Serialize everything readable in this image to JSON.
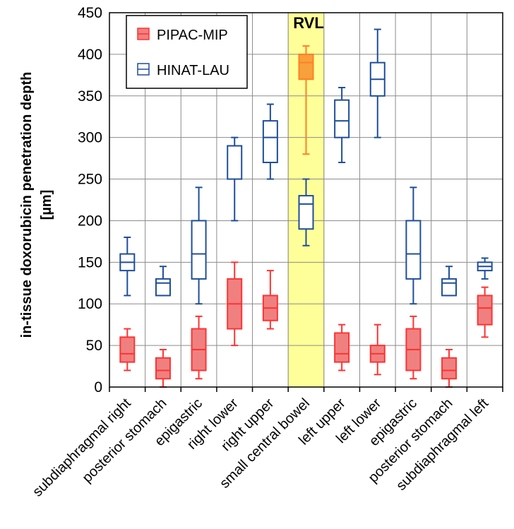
{
  "chart_data": {
    "type": "box",
    "ylabel_line1": "in-tissue doxorubicin penetration depth",
    "ylabel_line2": "[µm]",
    "ylim": [
      0,
      450
    ],
    "yticks": [
      0,
      50,
      100,
      150,
      200,
      250,
      300,
      350,
      400,
      450
    ],
    "categories": [
      "subdiaphragmal right",
      "posterior stomach",
      "epigastric",
      "right lower",
      "right upper",
      "small central bowel",
      "left upper",
      "left lower",
      "epigastric",
      "posterior stomach",
      "subdiaphragmal left"
    ],
    "highlight": {
      "label": "RVL",
      "category_index": 5,
      "color": "#ffff99"
    },
    "series": [
      {
        "name": "PIPAC-MIP",
        "color": "#ff3333",
        "fill": "#f08080",
        "boxes": [
          {
            "min": 20,
            "q1": 30,
            "median": 40,
            "q3": 60,
            "max": 70
          },
          {
            "min": 0,
            "q1": 10,
            "median": 20,
            "q3": 35,
            "max": 45
          },
          {
            "min": 10,
            "q1": 20,
            "median": 45,
            "q3": 70,
            "max": 85
          },
          {
            "min": 50,
            "q1": 70,
            "median": 100,
            "q3": 130,
            "max": 150
          },
          {
            "min": 70,
            "q1": 80,
            "median": 95,
            "q3": 110,
            "max": 140
          },
          {
            "min": 280,
            "q1": 370,
            "median": 390,
            "q3": 400,
            "max": 410
          },
          {
            "min": 20,
            "q1": 30,
            "median": 40,
            "q3": 65,
            "max": 75
          },
          {
            "min": 15,
            "q1": 30,
            "median": 40,
            "q3": 50,
            "max": 75
          },
          {
            "min": 10,
            "q1": 20,
            "median": 45,
            "q3": 70,
            "max": 85
          },
          {
            "min": 0,
            "q1": 10,
            "median": 20,
            "q3": 35,
            "max": 45
          },
          {
            "min": 60,
            "q1": 75,
            "median": 95,
            "q3": 110,
            "max": 120
          }
        ]
      },
      {
        "name": "HINAT-LAU",
        "color": "#1f4e9a",
        "fill": "#ffffff",
        "boxes": [
          {
            "min": 110,
            "q1": 140,
            "median": 150,
            "q3": 160,
            "max": 180
          },
          {
            "min": 110,
            "q1": 110,
            "median": 125,
            "q3": 130,
            "max": 145
          },
          {
            "min": 100,
            "q1": 130,
            "median": 160,
            "q3": 200,
            "max": 240
          },
          {
            "min": 200,
            "q1": 250,
            "median": 290,
            "q3": 290,
            "max": 300
          },
          {
            "min": 250,
            "q1": 270,
            "median": 300,
            "q3": 320,
            "max": 340
          },
          {
            "min": 170,
            "q1": 190,
            "median": 220,
            "q3": 230,
            "max": 250
          },
          {
            "min": 270,
            "q1": 300,
            "median": 320,
            "q3": 345,
            "max": 360
          },
          {
            "min": 300,
            "q1": 350,
            "median": 370,
            "q3": 390,
            "max": 430
          },
          {
            "min": 100,
            "q1": 130,
            "median": 160,
            "q3": 200,
            "max": 240
          },
          {
            "min": 110,
            "q1": 110,
            "median": 125,
            "q3": 130,
            "max": 145
          },
          {
            "min": 130,
            "q1": 140,
            "median": 145,
            "q3": 150,
            "max": 155
          }
        ]
      }
    ],
    "legend": [
      "PIPAC-MIP",
      "HINAT-LAU"
    ]
  }
}
